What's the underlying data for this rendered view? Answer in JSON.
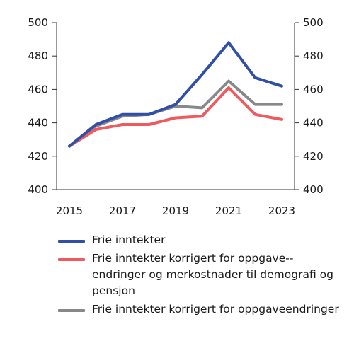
{
  "chart_data": {
    "type": "line",
    "x": [
      2015,
      2016,
      2017,
      2018,
      2019,
      2020,
      2021,
      2022,
      2023
    ],
    "x_ticks": [
      "2015",
      "2017",
      "2019",
      "2021",
      "2023"
    ],
    "y_ticks": [
      "400",
      "420",
      "440",
      "460",
      "480",
      "500"
    ],
    "ylim": [
      400,
      500
    ],
    "series": [
      {
        "name": "Frie inntekter",
        "color": "#2f4fa8",
        "values": [
          426,
          439,
          445,
          445,
          451,
          469,
          488,
          467,
          462
        ]
      },
      {
        "name": "Frie inntekter korrigert for oppgave-endringer og merkostnader til demografi og pensjon",
        "color": "#ef5a5f",
        "values": [
          426,
          436,
          439,
          439,
          443,
          444,
          461,
          445,
          442
        ]
      },
      {
        "name": "Frie inntekter korrigert for oppgaveendringer",
        "color": "#888888",
        "values": [
          426,
          438,
          444,
          445,
          450,
          449,
          465,
          451,
          451
        ]
      }
    ],
    "legend": [
      {
        "label": "Frie inntekter",
        "color": "#2f4fa8"
      },
      {
        "label": "Frie inntekter korrigert for oppgave-­endringer og merkostnader til demografi og pensjon",
        "color": "#ef5a5f"
      },
      {
        "label": "Frie inntekter korrigert for oppgaveendringer",
        "color": "#888888"
      }
    ],
    "grid": false,
    "legend_position": "bottom"
  }
}
